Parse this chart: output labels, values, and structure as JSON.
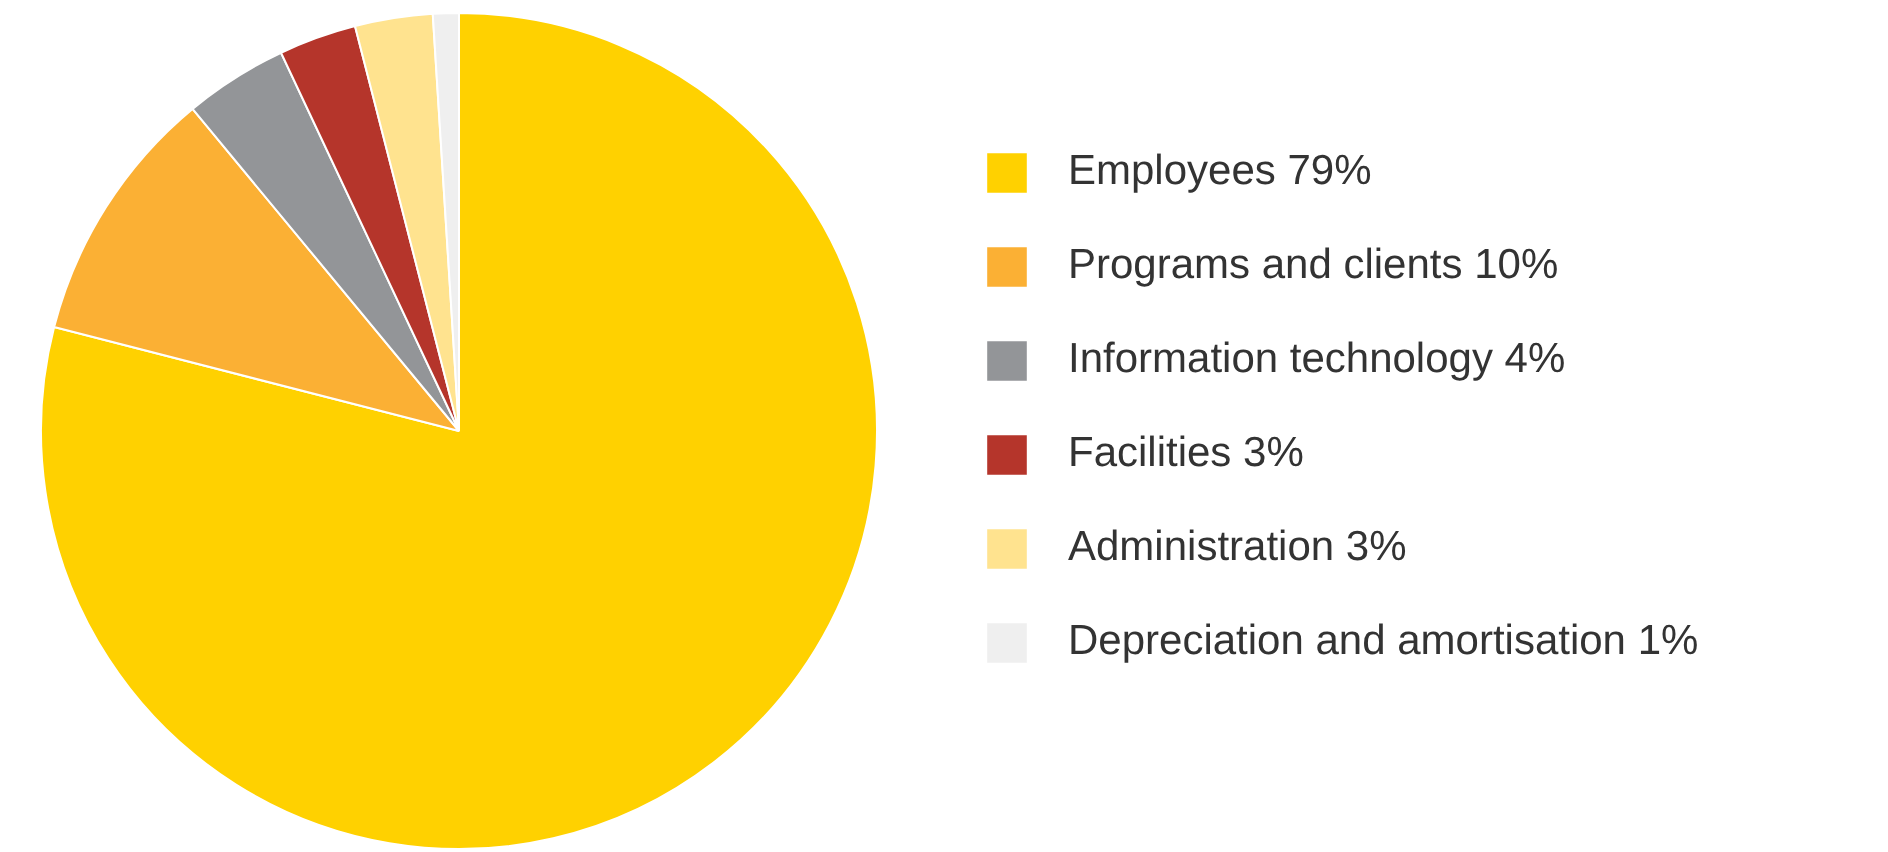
{
  "chart_data": {
    "type": "pie",
    "categories": [
      "Employees 79%",
      "Programs and clients 10%",
      "Information technology 4%",
      "Facilities 3%",
      "Administration 3%",
      "Depreciation and amortisation 1%"
    ],
    "values": [
      79,
      10,
      4,
      3,
      3,
      1
    ],
    "colors": [
      "#ffd100",
      "#fbb034",
      "#939598",
      "#b5352b",
      "#ffe38f",
      "#efefef"
    ],
    "legend": "right"
  }
}
